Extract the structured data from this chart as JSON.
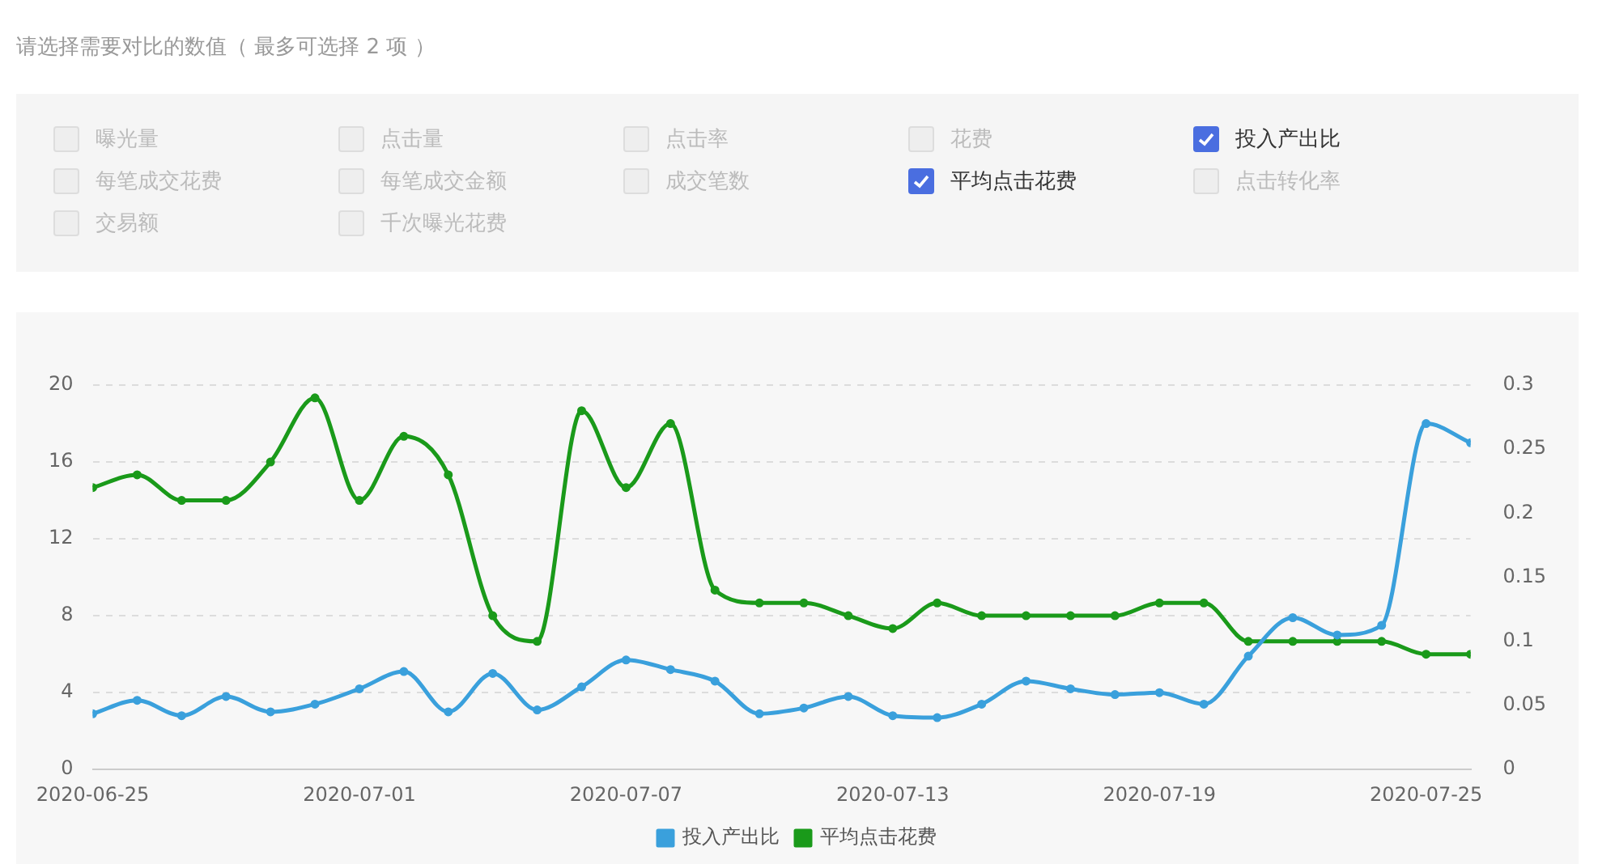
{
  "chart_data": {
    "type": "line",
    "title": "请选择需要对比的数值（ 最多可选择 2 项 ）",
    "annotations": [
      "曝光量",
      "点击量",
      "点击率",
      "花费",
      "投入产出比",
      "每笔成交花费",
      "每笔成交金额",
      "成交笔数",
      "平均点击花费",
      "点击转化率",
      "交易额",
      "千次曝光花费"
    ],
    "x": [
      "2020-06-25",
      "2020-06-26",
      "2020-06-27",
      "2020-06-28",
      "2020-06-29",
      "2020-06-30",
      "2020-07-01",
      "2020-07-02",
      "2020-07-03",
      "2020-07-04",
      "2020-07-05",
      "2020-07-06",
      "2020-07-07",
      "2020-07-08",
      "2020-07-09",
      "2020-07-10",
      "2020-07-11",
      "2020-07-12",
      "2020-07-13",
      "2020-07-14",
      "2020-07-15",
      "2020-07-16",
      "2020-07-17",
      "2020-07-18",
      "2020-07-19",
      "2020-07-20",
      "2020-07-21",
      "2020-07-22",
      "2020-07-23",
      "2020-07-24",
      "2020-07-25",
      "2020-07-26"
    ],
    "xlim": [
      "2020-06-25",
      "2020-07-26"
    ],
    "xticks": [
      "2020-06-25",
      "2020-07-01",
      "2020-07-07",
      "2020-07-13",
      "2020-07-19",
      "2020-07-25"
    ],
    "series": [
      {
        "name": "投入产出比",
        "color": "#3aa0dc",
        "values": [
          2.9,
          3.6,
          2.8,
          3.8,
          3.0,
          3.4,
          4.2,
          5.1,
          3.0,
          5.0,
          3.1,
          4.3,
          5.7,
          5.2,
          4.6,
          2.9,
          3.2,
          3.8,
          2.8,
          2.7,
          3.4,
          4.6,
          4.2,
          3.9,
          4.0,
          3.4,
          5.9,
          7.9,
          7.0,
          7.5,
          18.0,
          17.0
        ]
      },
      {
        "name": "平均点击花费",
        "color": "#1a9a1a",
        "axis": "y2",
        "values": [
          0.22,
          0.23,
          0.21,
          0.21,
          0.24,
          0.29,
          0.21,
          0.26,
          0.23,
          0.12,
          0.1,
          0.28,
          0.22,
          0.27,
          0.14,
          0.13,
          0.13,
          0.12,
          0.11,
          0.13,
          0.12,
          0.12,
          0.12,
          0.12,
          0.13,
          0.13,
          0.1,
          0.1,
          0.1,
          0.1,
          0.09,
          0.09
        ]
      }
    ],
    "ylim": [
      0,
      20
    ],
    "yticks": [
      0,
      4,
      8,
      12,
      16,
      20
    ],
    "y2lim": [
      0,
      0.3
    ],
    "y2ticks": [
      0,
      0.05,
      0.1,
      0.15,
      0.2,
      0.25,
      0.3
    ],
    "grid": "y",
    "legend": "bottom",
    "marker": "circle",
    "line_style": "solid"
  }
}
